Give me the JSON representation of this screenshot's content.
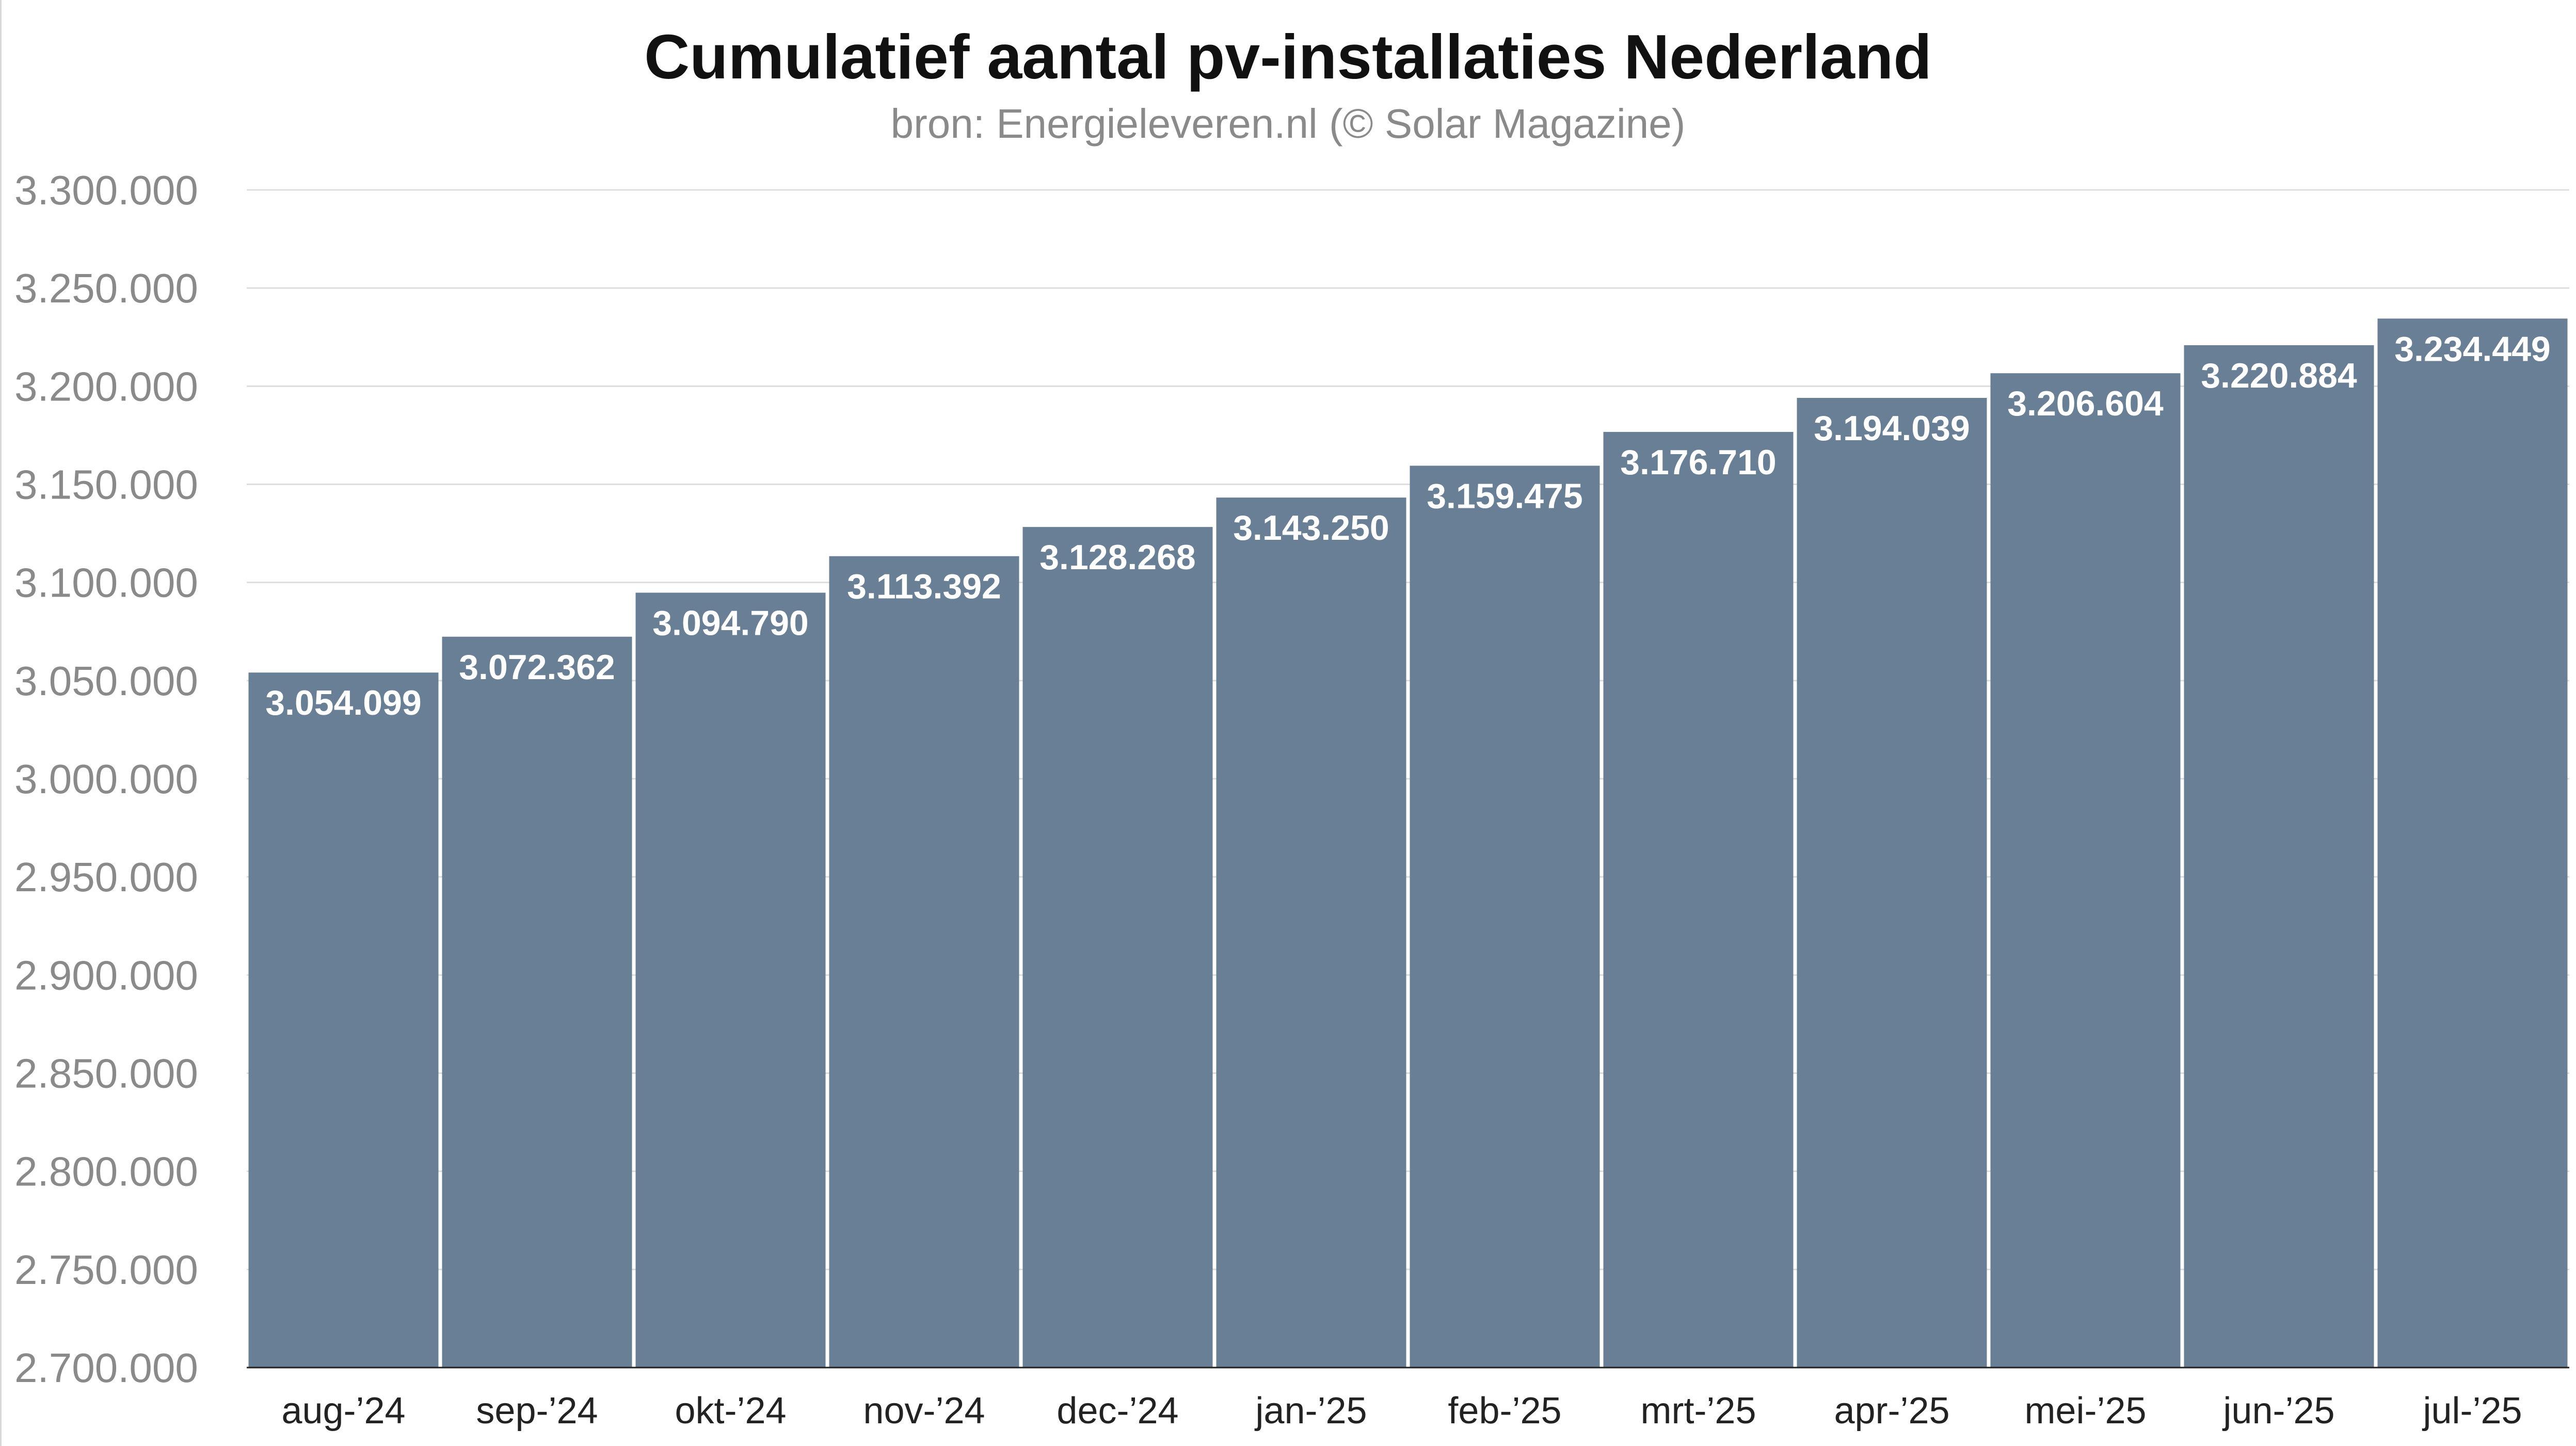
{
  "chart_data": {
    "type": "bar",
    "title": "Cumulatief aantal pv-installaties Nederland",
    "subtitle": "bron: Energieleveren.nl (© Solar Magazine)",
    "xlabel": "",
    "ylabel": "",
    "ylim": [
      2700000,
      3300000
    ],
    "ytick_step": 50000,
    "y_tick_labels": [
      "2.700.000",
      "2.750.000",
      "2.800.000",
      "2.850.000",
      "2.900.000",
      "2.950.000",
      "3.000.000",
      "3.050.000",
      "3.100.000",
      "3.150.000",
      "3.200.000",
      "3.250.000",
      "3.300.000"
    ],
    "grid": true,
    "legend": "none",
    "bar_color": "#687f96",
    "categories": [
      "aug-’24",
      "sep-’24",
      "okt-’24",
      "nov-’24",
      "dec-’24",
      "jan-’25",
      "feb-’25",
      "mrt-’25",
      "apr-’25",
      "mei-’25",
      "jun-’25",
      "jul-’25"
    ],
    "values": [
      3054099,
      3072362,
      3094790,
      3113392,
      3128268,
      3143250,
      3159475,
      3176710,
      3194039,
      3206604,
      3220884,
      3234449
    ],
    "data_labels": [
      "3.054.099",
      "3.072.362",
      "3.094.790",
      "3.113.392",
      "3.128.268",
      "3.143.250",
      "3.159.475",
      "3.176.710",
      "3.194.039",
      "3.206.604",
      "3.220.884",
      "3.234.449"
    ]
  }
}
